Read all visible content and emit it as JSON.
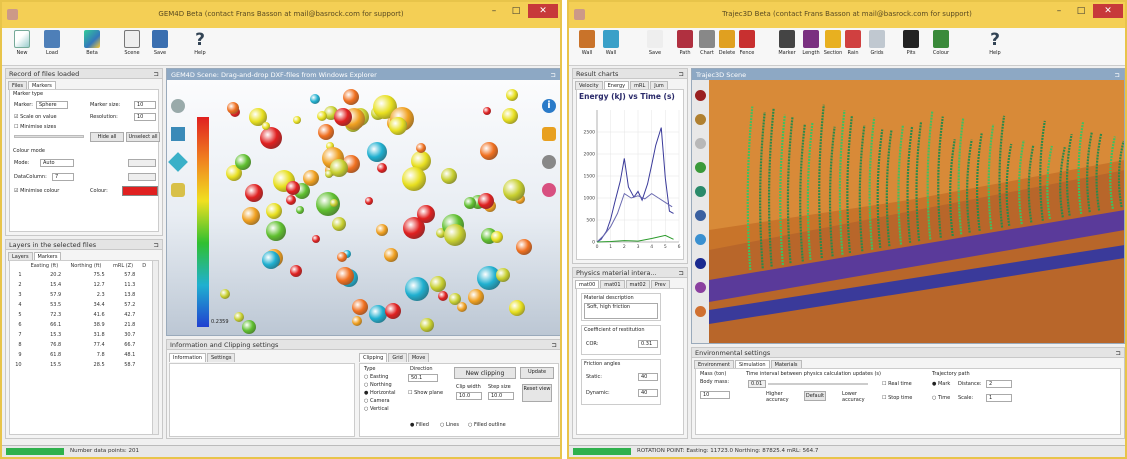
{
  "left_window": {
    "title": "GEM4D Beta (contact Frans Basson at mail@basrock.com for support)",
    "toolbar": [
      "New",
      "Load",
      "Beta",
      "Scene",
      "Save",
      "Help"
    ],
    "records_panel": {
      "title": "Record of files loaded",
      "tabs": [
        "Files",
        "Markers"
      ],
      "marker_type_heading": "Marker type",
      "marker_label": "Marker:",
      "marker_value": "Sphere",
      "marker_size_label": "Marker size:",
      "marker_size_value": "10",
      "scale_on_value": "Scale on value",
      "resolution_label": "Resolution:",
      "resolution_value": "10",
      "minimise_sizes": "Minimise sizes",
      "hide_all": "Hide all",
      "unselect_all": "Unselect all",
      "colour_mode_heading": "Colour mode",
      "mode_label": "Mode:",
      "mode_value": "Auto",
      "data_column_label": "DataColumn:",
      "data_column_value": "7",
      "minimise_colour": "Minimise colour",
      "colour_label": "Colour:",
      "colour_swatch": "#e02020"
    },
    "layers_panel": {
      "title": "Layers in the selected files",
      "tabs": [
        "Layers",
        "Markers"
      ],
      "columns": [
        "Easting (ft)",
        "Northing (ft)",
        "mRL (Z)",
        "D"
      ],
      "rows": [
        [
          "1",
          "20.2",
          "75.5",
          "57.8"
        ],
        [
          "2",
          "15.4",
          "12.7",
          "11.3"
        ],
        [
          "3",
          "57.9",
          "2.3",
          "13.8"
        ],
        [
          "4",
          "53.5",
          "34.4",
          "57.2"
        ],
        [
          "5",
          "72.3",
          "41.6",
          "42.7"
        ],
        [
          "6",
          "66.1",
          "38.9",
          "21.8"
        ],
        [
          "7",
          "15.3",
          "31.8",
          "30.7"
        ],
        [
          "8",
          "76.8",
          "77.4",
          "66.7"
        ],
        [
          "9",
          "61.8",
          "7.8",
          "48.1"
        ],
        [
          "10",
          "15.5",
          "28.5",
          "58.7"
        ]
      ]
    },
    "scene_panel": {
      "title": "GEM4D Scene: Drag-and-drop DXF-files from Windows Explorer",
      "colorbar_labels": [
        "",
        "",
        "",
        "",
        "0.2359"
      ]
    },
    "info_panel": {
      "title": "Information and Clipping settings",
      "tabs_left": [
        "Information",
        "Settings"
      ],
      "tabs_right": [
        "Clipping",
        "Grid",
        "Move"
      ],
      "type_heading": "Type",
      "type_options": [
        "Easting",
        "Northing",
        "Horizontal",
        "Camera",
        "Vertical"
      ],
      "direction_label": "Direction",
      "direction_value": "50.1",
      "show_plane": "Show plane",
      "clip_width_label": "Clip width",
      "clip_width_value": "10.0",
      "step_size_label": "Step size",
      "step_size_value": "10.0",
      "new_clipping": "New clipping",
      "update": "Update",
      "reset_view": "Reset view",
      "options": [
        "Filled",
        "Lines",
        "Filled outline"
      ]
    },
    "status": "Number data points: 201"
  },
  "right_window": {
    "title": "Trajec3D Beta (contact Frans Basson at mail@basrock.com for support)",
    "toolbar": [
      "Wall",
      "Wall",
      "Save",
      "Path",
      "Chart",
      "Delete",
      "Fence",
      "Marker",
      "Length",
      "Section",
      "Rain",
      "Grids",
      "Pits",
      "Colour",
      "Help"
    ],
    "charts_panel": {
      "title": "Result charts",
      "tabs": [
        "Velocity",
        "Energy",
        "mRL",
        "Jum"
      ],
      "chart_title": "Energy (kJ) vs Time (s)"
    },
    "physics_panel": {
      "title": "Physics material intera...",
      "tabs": [
        "mat00",
        "mat01",
        "mat02",
        "Prev"
      ],
      "material_description_label": "Material description",
      "material_description_value": "Soft, high friction",
      "restitution_label": "Coefficient of restitution",
      "cor_label": "COR:",
      "cor_value": "0.31",
      "friction_label": "Friction angles",
      "static_label": "Static:",
      "static_value": "40",
      "dynamic_label": "Dynamic:",
      "dynamic_value": "40"
    },
    "scene_panel": {
      "title": "Trajec3D Scene"
    },
    "env_panel": {
      "title": "Environmental settings",
      "tabs": [
        "Environment",
        "Simulation",
        "Materials"
      ],
      "mass_label": "Mass (ton)",
      "body_mass_label": "Body mass:",
      "body_mass_value": "10",
      "time_interval_label": "Time interval between physics calculation updates (s)",
      "time_interval_value": "0.01",
      "higher_accuracy": "Higher accuracy",
      "default_btn": "Default",
      "lower_accuracy": "Lower accuracy",
      "real_time": "Real time",
      "stop_time": "Stop time",
      "trajectory_label": "Trajectory path",
      "mark_label": "Mark",
      "distance_label": "Distance:",
      "distance_value": "2",
      "time_label": "Time",
      "scale_label": "Scale:",
      "scale_value": "1"
    },
    "status": "ROTATION POINT: Easting: 11723.0  Northing: 87825.4  mRL: 564.7"
  },
  "chart_data": {
    "type": "line",
    "title": "Energy (kJ) vs Time (s)",
    "xlabel": "",
    "ylabel": "",
    "xlim": [
      0,
      6
    ],
    "ylim": [
      0,
      3000
    ],
    "x_ticks": [
      "0",
      "1",
      "2",
      "3",
      "4",
      "5",
      "6"
    ],
    "y_ticks": [
      "0",
      "500",
      "1000",
      "1500",
      "2000",
      "2500"
    ],
    "series": [
      {
        "color": "#3a3a9a",
        "x": [
          0,
          0.3,
          0.7,
          1,
          1.3,
          1.7,
          2,
          2.3,
          2.7,
          3,
          3.3,
          3.7,
          4,
          4.3,
          4.7,
          5,
          5.3,
          5.6
        ],
        "y": [
          0,
          60,
          250,
          520,
          900,
          1380,
          1900,
          1250,
          1020,
          1150,
          950,
          1320,
          1750,
          2200,
          2600,
          1450,
          700,
          650
        ]
      },
      {
        "color": "#6a6ab0",
        "x": [
          0,
          0.5,
          1,
          1.5,
          2,
          2.5,
          3,
          3.5,
          4,
          4.5,
          5,
          5.5
        ],
        "y": [
          0,
          150,
          350,
          650,
          1100,
          1000,
          1050,
          980,
          1100,
          1000,
          900,
          800
        ]
      },
      {
        "color": "#2a9a2a",
        "x": [
          0,
          1,
          2,
          3,
          4,
          5,
          5.6
        ],
        "y": [
          0,
          10,
          30,
          20,
          80,
          150,
          60
        ]
      }
    ]
  }
}
